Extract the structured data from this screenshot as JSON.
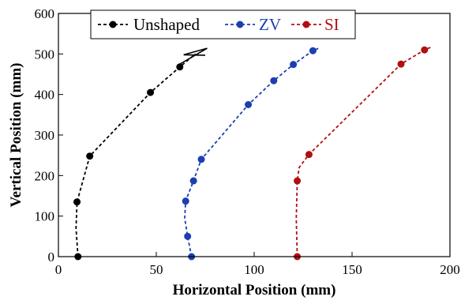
{
  "chart_data": {
    "type": "line",
    "xlabel": "Horizontal Position (mm)",
    "ylabel": "Vertical Position (mm)",
    "xlim": [
      0,
      200
    ],
    "ylim": [
      0,
      600
    ],
    "xticks": [
      0,
      50,
      100,
      150,
      200
    ],
    "yticks": [
      0,
      100,
      200,
      300,
      400,
      500,
      600
    ],
    "grid": false,
    "legend_position": "top",
    "series": [
      {
        "name": "Unshaped",
        "color": "#000000",
        "x": [
          10,
          9,
          9.5,
          16,
          47,
          62,
          70
        ],
        "y": [
          0,
          70,
          135,
          248,
          405,
          468,
          500
        ],
        "markers": [
          0,
          2,
          3,
          4,
          5
        ],
        "arrow_x": [
          62,
          76,
          64,
          75
        ],
        "arrow_y": [
          475,
          514,
          498,
          497
        ]
      },
      {
        "name": "ZV",
        "color": "#1a3fb0",
        "x": [
          68,
          66,
          64.5,
          65,
          69,
          73,
          97,
          110,
          120,
          130,
          133
        ],
        "y": [
          0,
          50,
          95,
          137,
          187,
          240,
          375,
          434,
          474,
          508,
          514
        ],
        "markers": [
          0,
          1,
          3,
          4,
          5,
          6,
          7,
          8,
          9
        ]
      },
      {
        "name": "SI",
        "color": "#b01010",
        "x": [
          122,
          121.5,
          122,
          123,
          128,
          175,
          187,
          190
        ],
        "y": [
          0,
          93,
          187,
          220,
          252,
          475,
          510,
          516
        ],
        "markers": [
          0,
          2,
          4,
          5,
          6
        ]
      }
    ]
  }
}
